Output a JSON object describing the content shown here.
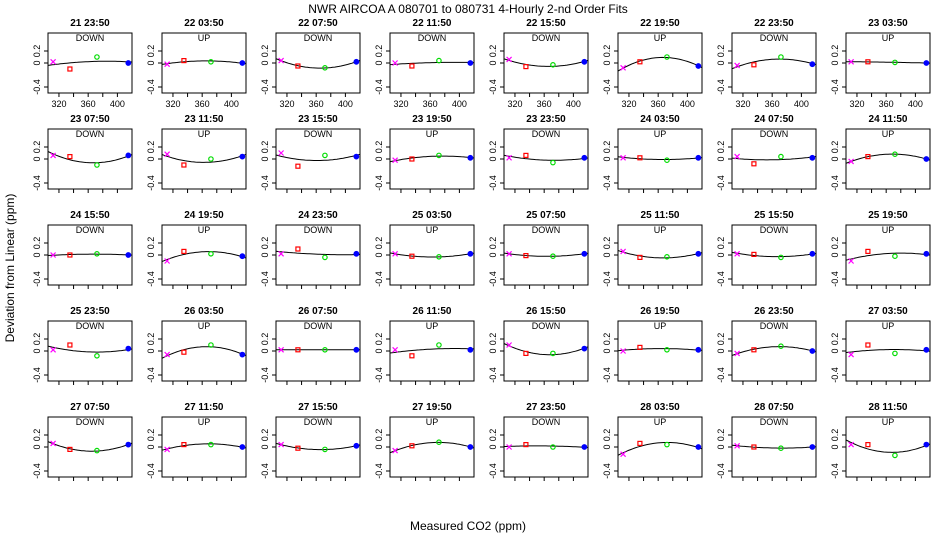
{
  "chart_data": {
    "type": "scatter",
    "title": "NWR   AIRCOA A    080701 to 080731   4-Hourly 2-nd Order Fits",
    "xlabel": "Measured CO2 (ppm)",
    "ylabel": "Deviation from Linear (ppm)",
    "xlim": [
      305,
      420
    ],
    "ylim": [
      -0.5,
      0.5
    ],
    "xticks": [
      320,
      360,
      400
    ],
    "xticks_minor": [
      340,
      380
    ],
    "yticks": [
      -0.4,
      0.0,
      0.2
    ],
    "ytick_labels": [
      "-0.4",
      "0",
      "0.2"
    ],
    "colors": {
      "std1": "#ff00ff",
      "std2": "#ff0000",
      "std3": "#00dd00",
      "std4": "#0000ff",
      "fit": "#000000"
    },
    "standards_x": [
      312,
      335,
      372,
      415
    ],
    "panels": [
      {
        "label": "21 23:50",
        "direction": "DOWN",
        "y": [
          0.02,
          -0.1,
          0.1,
          0.0
        ]
      },
      {
        "label": "22 03:50",
        "direction": "UP",
        "y": [
          -0.02,
          0.04,
          0.02,
          0.0
        ]
      },
      {
        "label": "22 07:50",
        "direction": "DOWN",
        "y": [
          0.04,
          -0.05,
          -0.08,
          0.02
        ]
      },
      {
        "label": "22 11:50",
        "direction": "DOWN",
        "y": [
          0.0,
          -0.05,
          0.04,
          0.0
        ]
      },
      {
        "label": "22 15:50",
        "direction": "DOWN",
        "y": [
          0.06,
          -0.06,
          -0.03,
          0.02
        ]
      },
      {
        "label": "22 19:50",
        "direction": "UP",
        "y": [
          -0.08,
          0.02,
          0.1,
          -0.05
        ]
      },
      {
        "label": "22 23:50",
        "direction": "DOWN",
        "y": [
          -0.04,
          -0.03,
          0.1,
          -0.02
        ]
      },
      {
        "label": "23 03:50",
        "direction": "UP",
        "y": [
          0.02,
          0.02,
          0.01,
          0.0
        ]
      },
      {
        "label": "23 07:50",
        "direction": "DOWN",
        "y": [
          0.06,
          0.04,
          -0.1,
          0.06
        ]
      },
      {
        "label": "23 11:50",
        "direction": "UP",
        "y": [
          0.08,
          -0.1,
          0.0,
          0.04
        ]
      },
      {
        "label": "23 15:50",
        "direction": "DOWN",
        "y": [
          0.1,
          -0.12,
          0.06,
          0.04
        ]
      },
      {
        "label": "23 19:50",
        "direction": "UP",
        "y": [
          -0.02,
          0.0,
          0.06,
          0.02
        ]
      },
      {
        "label": "23 23:50",
        "direction": "DOWN",
        "y": [
          0.02,
          0.06,
          -0.06,
          0.02
        ]
      },
      {
        "label": "24 03:50",
        "direction": "UP",
        "y": [
          0.02,
          0.02,
          -0.02,
          0.02
        ]
      },
      {
        "label": "24 07:50",
        "direction": "DOWN",
        "y": [
          0.04,
          -0.08,
          0.04,
          0.02
        ]
      },
      {
        "label": "24 11:50",
        "direction": "UP",
        "y": [
          -0.04,
          0.04,
          0.08,
          0.0
        ]
      },
      {
        "label": "24 15:50",
        "direction": "DOWN",
        "y": [
          0.0,
          0.0,
          0.02,
          0.0
        ]
      },
      {
        "label": "24 19:50",
        "direction": "UP",
        "y": [
          -0.1,
          0.06,
          0.02,
          -0.02
        ]
      },
      {
        "label": "24 23:50",
        "direction": "DOWN",
        "y": [
          0.02,
          0.1,
          -0.04,
          0.02
        ]
      },
      {
        "label": "25 03:50",
        "direction": "UP",
        "y": [
          0.02,
          -0.02,
          -0.03,
          0.02
        ]
      },
      {
        "label": "25 07:50",
        "direction": "DOWN",
        "y": [
          0.02,
          -0.01,
          -0.02,
          0.02
        ]
      },
      {
        "label": "25 11:50",
        "direction": "UP",
        "y": [
          0.06,
          -0.04,
          -0.03,
          0.02
        ]
      },
      {
        "label": "25 15:50",
        "direction": "DOWN",
        "y": [
          0.02,
          0.01,
          -0.04,
          0.02
        ]
      },
      {
        "label": "25 19:50",
        "direction": "UP",
        "y": [
          -0.1,
          0.06,
          -0.02,
          0.02
        ]
      },
      {
        "label": "25 23:50",
        "direction": "DOWN",
        "y": [
          0.02,
          0.1,
          -0.08,
          0.04
        ]
      },
      {
        "label": "26 03:50",
        "direction": "UP",
        "y": [
          -0.06,
          -0.02,
          0.1,
          -0.06
        ]
      },
      {
        "label": "26 07:50",
        "direction": "DOWN",
        "y": [
          0.02,
          0.02,
          0.02,
          0.02
        ]
      },
      {
        "label": "26 11:50",
        "direction": "UP",
        "y": [
          0.02,
          -0.08,
          0.1,
          0.02
        ]
      },
      {
        "label": "26 15:50",
        "direction": "DOWN",
        "y": [
          0.1,
          -0.04,
          -0.04,
          0.04
        ]
      },
      {
        "label": "26 19:50",
        "direction": "UP",
        "y": [
          0.0,
          0.06,
          0.02,
          0.02
        ]
      },
      {
        "label": "26 23:50",
        "direction": "DOWN",
        "y": [
          -0.04,
          0.02,
          0.08,
          0.0
        ]
      },
      {
        "label": "27 03:50",
        "direction": "UP",
        "y": [
          -0.06,
          0.1,
          -0.04,
          0.02
        ]
      },
      {
        "label": "27 07:50",
        "direction": "DOWN",
        "y": [
          0.06,
          -0.04,
          -0.06,
          0.04
        ]
      },
      {
        "label": "27 11:50",
        "direction": "UP",
        "y": [
          -0.04,
          0.04,
          0.04,
          0.0
        ]
      },
      {
        "label": "27 15:50",
        "direction": "DOWN",
        "y": [
          0.04,
          -0.02,
          -0.04,
          0.02
        ]
      },
      {
        "label": "27 19:50",
        "direction": "UP",
        "y": [
          -0.06,
          0.02,
          0.08,
          0.0
        ]
      },
      {
        "label": "27 23:50",
        "direction": "DOWN",
        "y": [
          0.0,
          0.04,
          0.0,
          0.0
        ]
      },
      {
        "label": "28 03:50",
        "direction": "UP",
        "y": [
          -0.12,
          0.06,
          0.04,
          0.0
        ]
      },
      {
        "label": "28 07:50",
        "direction": "DOWN",
        "y": [
          0.02,
          0.0,
          -0.02,
          0.0
        ]
      },
      {
        "label": "28 11:50",
        "direction": "UP",
        "y": [
          0.04,
          0.04,
          -0.14,
          0.04
        ]
      }
    ]
  }
}
